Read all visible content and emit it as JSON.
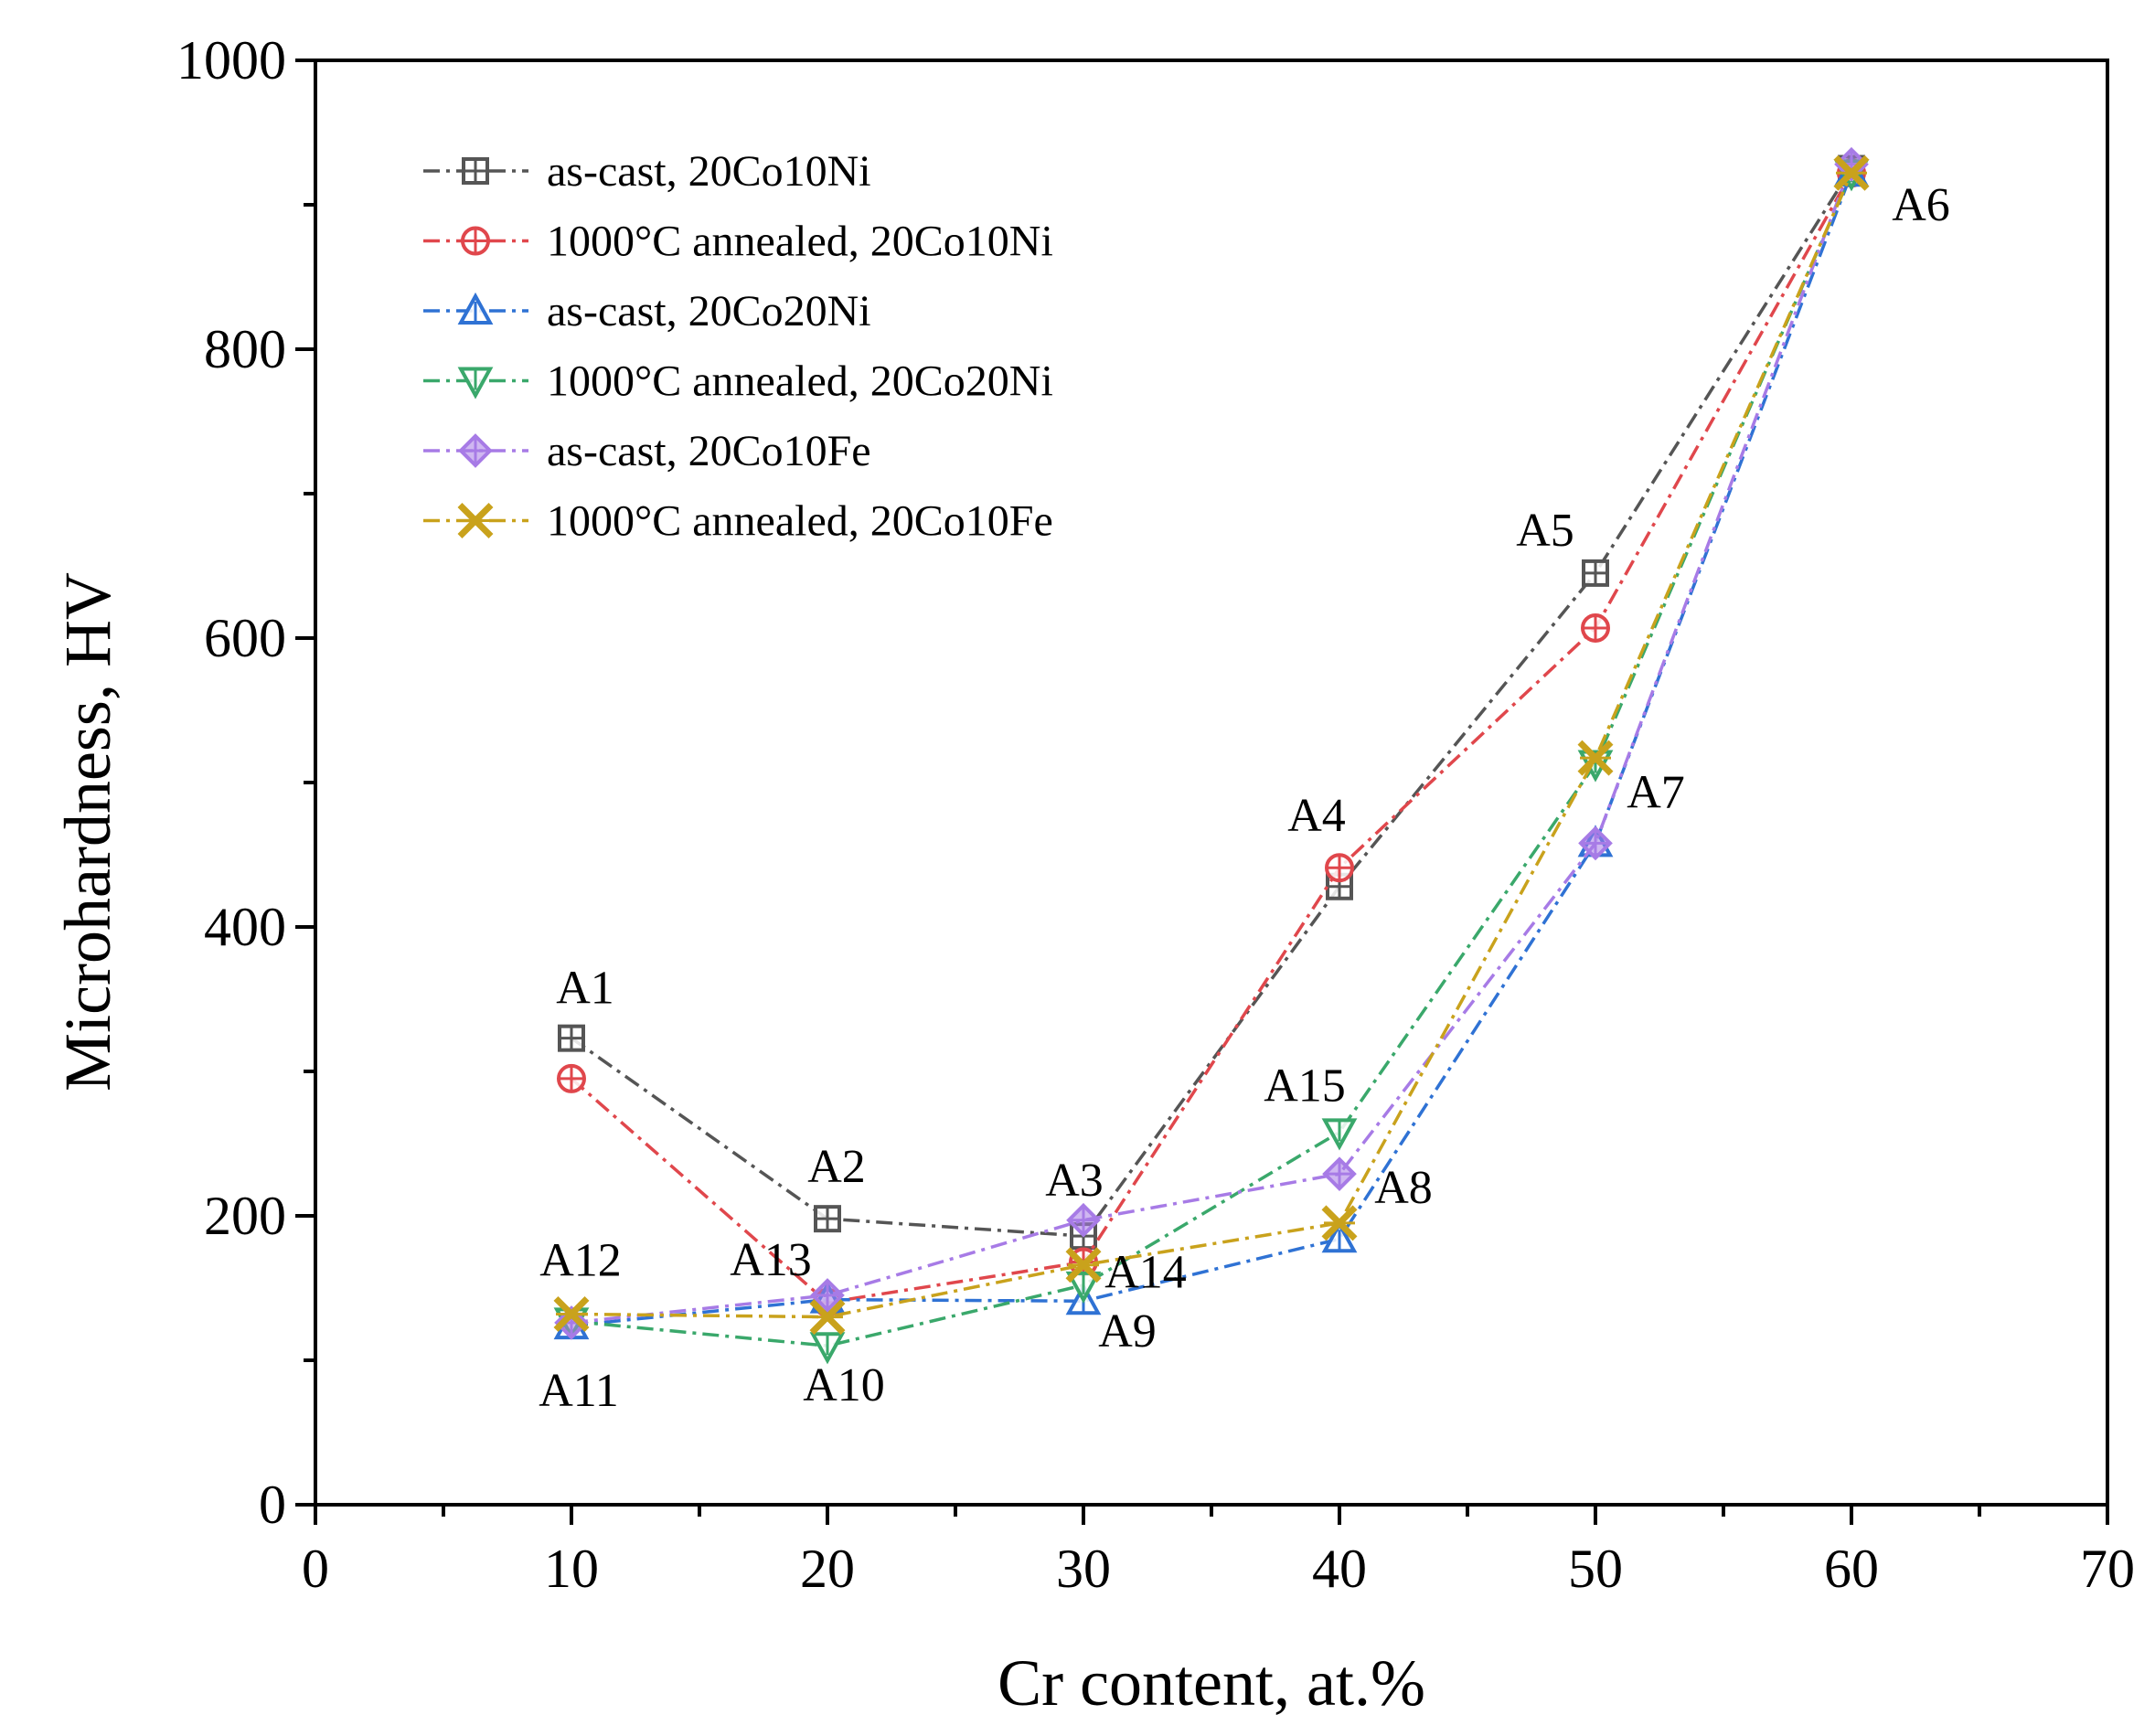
{
  "chart_data": {
    "type": "line",
    "title": "",
    "xlabel": "Cr content, at.%",
    "ylabel": "Microhardness, HV",
    "xlim": [
      0,
      70
    ],
    "ylim": [
      0,
      1000
    ],
    "xticks": [
      0,
      10,
      20,
      30,
      40,
      50,
      60,
      70
    ],
    "xtick_labels": [
      "0",
      "10",
      "20",
      "30",
      "40",
      "50",
      "60",
      "70"
    ],
    "yticks": [
      0,
      200,
      400,
      600,
      800,
      1000
    ],
    "ytick_labels": [
      "0",
      "200",
      "400",
      "600",
      "800",
      "1000"
    ],
    "grid": false,
    "legend_position": "top-left",
    "series": [
      {
        "name": "as-cast, 20Co10Ni",
        "color": "#555555",
        "marker": "square",
        "x": [
          10,
          20,
          30,
          40,
          50,
          60
        ],
        "y": [
          323,
          198,
          186,
          428,
          645,
          925
        ]
      },
      {
        "name": "1000°C annealed, 20Co10Ni",
        "color": "#e0474c",
        "marker": "circle",
        "x": [
          10,
          20,
          30,
          40,
          50,
          60
        ],
        "y": [
          295,
          140,
          168,
          441,
          607,
          922
        ]
      },
      {
        "name": "as-cast, 20Co20Ni",
        "color": "#2f72d4",
        "marker": "triangle-up",
        "x": [
          10,
          20,
          30,
          40,
          50,
          60
        ],
        "y": [
          124,
          142,
          141,
          184,
          458,
          922
        ]
      },
      {
        "name": "1000°C annealed, 20Co20Ni",
        "color": "#3aa86b",
        "marker": "triangle-down",
        "x": [
          10,
          20,
          30,
          40,
          50,
          60
        ],
        "y": [
          127,
          110,
          152,
          258,
          513,
          922
        ]
      },
      {
        "name": "as-cast, 20Co10Fe",
        "color": "#a77be6",
        "marker": "diamond",
        "x": [
          10,
          20,
          30,
          40,
          50,
          60
        ],
        "y": [
          126,
          145,
          197,
          229,
          458,
          928
        ]
      },
      {
        "name": "1000°C annealed, 20Co10Fe",
        "color": "#c9a21c",
        "marker": "x-star",
        "x": [
          10,
          20,
          30,
          40,
          50,
          60
        ],
        "y": [
          132,
          130,
          166,
          195,
          517,
          922
        ]
      }
    ],
    "annotations": [
      {
        "text": "A1",
        "x": 10,
        "y": 323
      },
      {
        "text": "A2",
        "x": 20,
        "y": 198
      },
      {
        "text": "A3",
        "x": 30,
        "y": 186
      },
      {
        "text": "A4",
        "x": 40,
        "y": 441
      },
      {
        "text": "A5",
        "x": 50,
        "y": 645
      },
      {
        "text": "A6",
        "x": 60,
        "y": 922
      },
      {
        "text": "A7",
        "x": 50,
        "y": 513
      },
      {
        "text": "A8",
        "x": 40,
        "y": 195
      },
      {
        "text": "A9",
        "x": 30,
        "y": 141
      },
      {
        "text": "A10",
        "x": 20,
        "y": 110
      },
      {
        "text": "A11",
        "x": 10,
        "y": 124
      },
      {
        "text": "A12",
        "x": 10,
        "y": 132
      },
      {
        "text": "A13",
        "x": 20,
        "y": 145
      },
      {
        "text": "A14",
        "x": 30,
        "y": 168
      },
      {
        "text": "A15",
        "x": 40,
        "y": 258
      }
    ]
  }
}
